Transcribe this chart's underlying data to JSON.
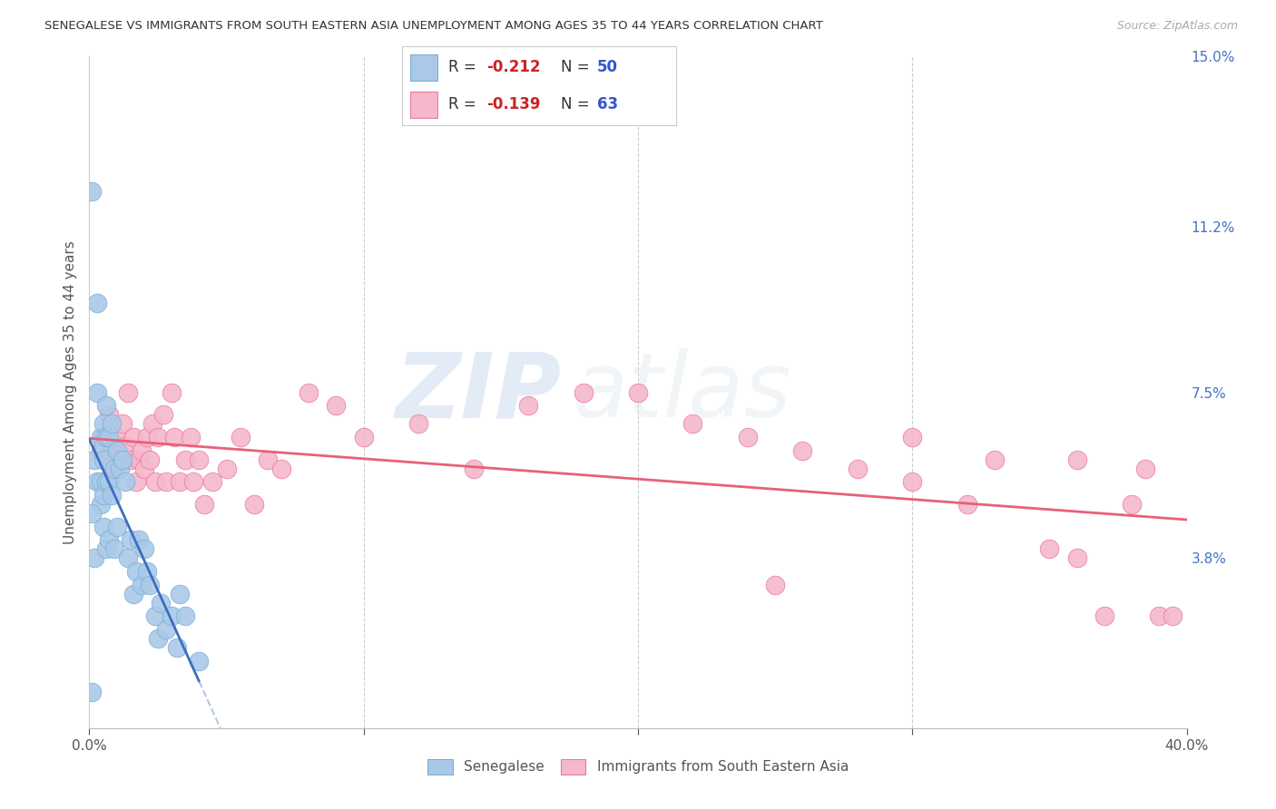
{
  "title": "SENEGALESE VS IMMIGRANTS FROM SOUTH EASTERN ASIA UNEMPLOYMENT AMONG AGES 35 TO 44 YEARS CORRELATION CHART",
  "source": "Source: ZipAtlas.com",
  "ylabel": "Unemployment Among Ages 35 to 44 years",
  "xlim": [
    0.0,
    0.4
  ],
  "ylim": [
    0.0,
    0.15
  ],
  "xticks": [
    0.0,
    0.1,
    0.2,
    0.3,
    0.4
  ],
  "xticklabels": [
    "0.0%",
    "",
    "",
    "",
    "40.0%"
  ],
  "yticks_right": [
    0.0,
    0.038,
    0.075,
    0.112,
    0.15
  ],
  "yticklabels_right": [
    "",
    "3.8%",
    "7.5%",
    "11.2%",
    "15.0%"
  ],
  "blue_color": "#aac9e8",
  "blue_edge": "#7aafd4",
  "pink_color": "#f5b8cb",
  "pink_edge": "#e87aa0",
  "blue_line_color": "#3c6ebf",
  "pink_line_color": "#e8607a",
  "dash_color": "#b0c8e8",
  "legend_R_blue": "-0.212",
  "legend_N_blue": "50",
  "legend_R_pink": "-0.139",
  "legend_N_pink": "63",
  "blue_scatter_x": [
    0.001,
    0.001,
    0.002,
    0.002,
    0.003,
    0.003,
    0.003,
    0.004,
    0.004,
    0.004,
    0.005,
    0.005,
    0.005,
    0.005,
    0.005,
    0.006,
    0.006,
    0.006,
    0.006,
    0.007,
    0.007,
    0.007,
    0.008,
    0.008,
    0.009,
    0.009,
    0.01,
    0.01,
    0.011,
    0.012,
    0.013,
    0.014,
    0.015,
    0.016,
    0.017,
    0.018,
    0.019,
    0.02,
    0.021,
    0.022,
    0.024,
    0.025,
    0.026,
    0.028,
    0.03,
    0.032,
    0.033,
    0.035,
    0.04,
    0.001
  ],
  "blue_scatter_y": [
    0.12,
    0.008,
    0.06,
    0.038,
    0.095,
    0.075,
    0.055,
    0.065,
    0.055,
    0.05,
    0.068,
    0.063,
    0.06,
    0.052,
    0.045,
    0.072,
    0.065,
    0.055,
    0.04,
    0.065,
    0.055,
    0.042,
    0.068,
    0.052,
    0.058,
    0.04,
    0.062,
    0.045,
    0.058,
    0.06,
    0.055,
    0.038,
    0.042,
    0.03,
    0.035,
    0.042,
    0.032,
    0.04,
    0.035,
    0.032,
    0.025,
    0.02,
    0.028,
    0.022,
    0.025,
    0.018,
    0.03,
    0.025,
    0.015,
    0.048
  ],
  "pink_scatter_x": [
    0.004,
    0.005,
    0.006,
    0.007,
    0.008,
    0.009,
    0.01,
    0.011,
    0.012,
    0.013,
    0.014,
    0.015,
    0.016,
    0.017,
    0.018,
    0.019,
    0.02,
    0.021,
    0.022,
    0.023,
    0.024,
    0.025,
    0.027,
    0.028,
    0.03,
    0.031,
    0.033,
    0.035,
    0.037,
    0.038,
    0.04,
    0.042,
    0.045,
    0.05,
    0.055,
    0.06,
    0.065,
    0.07,
    0.08,
    0.09,
    0.1,
    0.12,
    0.14,
    0.16,
    0.18,
    0.2,
    0.22,
    0.24,
    0.26,
    0.28,
    0.3,
    0.32,
    0.33,
    0.35,
    0.36,
    0.37,
    0.38,
    0.385,
    0.39,
    0.395,
    0.25,
    0.3,
    0.36
  ],
  "pink_scatter_y": [
    0.062,
    0.065,
    0.06,
    0.07,
    0.063,
    0.058,
    0.065,
    0.06,
    0.068,
    0.063,
    0.075,
    0.06,
    0.065,
    0.055,
    0.06,
    0.062,
    0.058,
    0.065,
    0.06,
    0.068,
    0.055,
    0.065,
    0.07,
    0.055,
    0.075,
    0.065,
    0.055,
    0.06,
    0.065,
    0.055,
    0.06,
    0.05,
    0.055,
    0.058,
    0.065,
    0.05,
    0.06,
    0.058,
    0.075,
    0.072,
    0.065,
    0.068,
    0.058,
    0.072,
    0.075,
    0.075,
    0.068,
    0.065,
    0.062,
    0.058,
    0.065,
    0.05,
    0.06,
    0.04,
    0.038,
    0.025,
    0.05,
    0.058,
    0.025,
    0.025,
    0.032,
    0.055,
    0.06
  ],
  "watermark_zip": "ZIP",
  "watermark_atlas": "atlas",
  "background_color": "#ffffff",
  "grid_color": "#cccccc"
}
